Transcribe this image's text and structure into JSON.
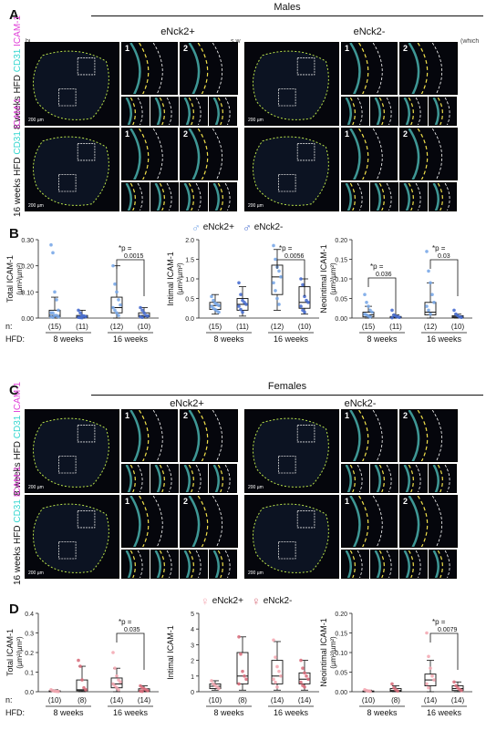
{
  "panels": {
    "A": {
      "label": "A",
      "sex": "Males",
      "left": "eNck2+",
      "right": "eNck2-",
      "row1": "8 weeks HFD",
      "row2": "16 weeks HFD",
      "marker1": "CD31",
      "marker2": "ICAM-1",
      "scale": "200 µm",
      "z1": "1",
      "z2": "2"
    },
    "C": {
      "label": "C",
      "sex": "Females",
      "left": "eNck2+",
      "right": "eNck2-",
      "row1": "8 weeks HFD",
      "row2": "16 weeks HFD",
      "marker1": "CD31",
      "marker2": "ICAM-1",
      "scale": "200 µm",
      "z1": "1",
      "z2": "2"
    },
    "A_caption_fragment": {
      "left": "bi",
      "mid": "s w",
      "right": "(which"
    }
  },
  "colors": {
    "male_pos": "#7aa8e8",
    "male_neg": "#4a6fd0",
    "fem_pos": "#f4aab4",
    "fem_neg": "#d9707e",
    "cd31": "#33d6cf",
    "icam": "#e040d8",
    "dash_yellow": "#f2e14a",
    "dash_green": "#b8e24a"
  },
  "chart_data": [
    {
      "panel": "B",
      "type": "box",
      "ylabel": "Total ICAM-1",
      "yunit": "(µm²/µm²)",
      "ylim": [
        0,
        0.3
      ],
      "yticks": [
        "0.00",
        "0.10",
        "0.20",
        "0.30"
      ],
      "groups": [
        {
          "hfd": "8 weeks",
          "series": "eNck2+",
          "n": "(15)",
          "min": 0.0,
          "q1": 0.005,
          "median": 0.01,
          "q3": 0.03,
          "max": 0.08,
          "points": [
            0.28,
            0.25,
            0.1,
            0.07,
            0.03,
            0.02,
            0.02,
            0.01,
            0.01,
            0.005,
            0.005,
            0.003
          ]
        },
        {
          "hfd": "8 weeks",
          "series": "eNck2-",
          "n": "(11)",
          "min": 0.0,
          "q1": 0.002,
          "median": 0.005,
          "q3": 0.01,
          "max": 0.03,
          "points": [
            0.03,
            0.02,
            0.01,
            0.008,
            0.005,
            0.003,
            0.002,
            0.001
          ]
        },
        {
          "hfd": "16 weeks",
          "series": "eNck2+",
          "n": "(12)",
          "min": 0.0,
          "q1": 0.02,
          "median": 0.04,
          "q3": 0.08,
          "max": 0.2,
          "points": [
            0.2,
            0.13,
            0.1,
            0.07,
            0.05,
            0.04,
            0.03,
            0.02,
            0.01
          ]
        },
        {
          "hfd": "16 weeks",
          "series": "eNck2-",
          "n": "(10)",
          "min": 0.0,
          "q1": 0.005,
          "median": 0.01,
          "q3": 0.02,
          "max": 0.04,
          "points": [
            0.04,
            0.03,
            0.02,
            0.01,
            0.008,
            0.005,
            0.003
          ]
        }
      ],
      "annotations": [
        {
          "text": "*p =",
          "value": "0.0015"
        }
      ]
    },
    {
      "panel": "B",
      "type": "box",
      "ylabel": "Intimal ICAM-1",
      "yunit": "(µm²/µm²)",
      "ylim": [
        0,
        2.0
      ],
      "yticks": [
        "0.0",
        "0.5",
        "1.0",
        "1.5",
        "2.0"
      ],
      "groups": [
        {
          "hfd": "8 weeks",
          "series": "eNck2+",
          "n": "(15)",
          "min": 0.1,
          "q1": 0.22,
          "median": 0.32,
          "q3": 0.4,
          "max": 0.6,
          "points": [
            0.55,
            0.45,
            0.38,
            0.35,
            0.32,
            0.3,
            0.25,
            0.22,
            0.18,
            0.15
          ]
        },
        {
          "hfd": "8 weeks",
          "series": "eNck2-",
          "n": "(11)",
          "min": 0.05,
          "q1": 0.2,
          "median": 0.35,
          "q3": 0.5,
          "max": 0.8,
          "points": [
            0.9,
            0.6,
            0.45,
            0.4,
            0.35,
            0.3,
            0.22,
            0.15
          ]
        },
        {
          "hfd": "16 weeks",
          "series": "eNck2+",
          "n": "(12)",
          "min": 0.2,
          "q1": 0.6,
          "median": 1.05,
          "q3": 1.35,
          "max": 1.75,
          "points": [
            1.85,
            1.5,
            1.3,
            1.2,
            1.05,
            0.9,
            0.7,
            0.5,
            0.35
          ]
        },
        {
          "hfd": "16 weeks",
          "series": "eNck2-",
          "n": "(10)",
          "min": 0.1,
          "q1": 0.25,
          "median": 0.4,
          "q3": 0.8,
          "max": 1.0,
          "points": [
            1.0,
            0.85,
            0.55,
            0.45,
            0.4,
            0.3,
            0.2,
            0.15
          ]
        }
      ],
      "annotations": [
        {
          "text": "*p =",
          "value": "0.0056"
        }
      ]
    },
    {
      "panel": "B",
      "type": "box",
      "ylabel": "Neointimal ICAM-1",
      "yunit": "(µm²/µm²)",
      "ylim": [
        0,
        0.2
      ],
      "yticks": [
        "0.00",
        "0.05",
        "0.10",
        "0.15",
        "0.20"
      ],
      "groups": [
        {
          "hfd": "8 weeks",
          "series": "eNck2+",
          "n": "(15)",
          "min": 0.0,
          "q1": 0.003,
          "median": 0.008,
          "q3": 0.015,
          "max": 0.03,
          "points": [
            0.06,
            0.04,
            0.03,
            0.02,
            0.015,
            0.01,
            0.008,
            0.005,
            0.003
          ]
        },
        {
          "hfd": "8 weeks",
          "series": "eNck2-",
          "n": "(11)",
          "min": 0.0,
          "q1": 0.001,
          "median": 0.002,
          "q3": 0.004,
          "max": 0.008,
          "points": [
            0.02,
            0.008,
            0.005,
            0.003,
            0.002,
            0.001
          ]
        },
        {
          "hfd": "16 weeks",
          "series": "eNck2+",
          "n": "(12)",
          "min": 0.0,
          "q1": 0.008,
          "median": 0.015,
          "q3": 0.04,
          "max": 0.09,
          "points": [
            0.17,
            0.12,
            0.09,
            0.06,
            0.04,
            0.03,
            0.02,
            0.01
          ]
        },
        {
          "hfd": "16 weeks",
          "series": "eNck2-",
          "n": "(10)",
          "min": 0.0,
          "q1": 0.001,
          "median": 0.003,
          "q3": 0.006,
          "max": 0.01,
          "points": [
            0.02,
            0.01,
            0.006,
            0.003,
            0.002
          ]
        }
      ],
      "annotations": [
        {
          "text": "*p =",
          "value": "0.036"
        },
        {
          "text": "*p =",
          "value": "0.03"
        }
      ]
    },
    {
      "panel": "D",
      "type": "box",
      "ylabel": "Total ICAM-1",
      "yunit": "(µm²/µm²)",
      "ylim": [
        0,
        0.4
      ],
      "yticks": [
        "0.0",
        "0.1",
        "0.2",
        "0.3",
        "0.4"
      ],
      "groups": [
        {
          "hfd": "8 weeks",
          "series": "eNck2+",
          "n": "(10)",
          "min": 0.0,
          "q1": 0.0,
          "median": 0.002,
          "q3": 0.005,
          "max": 0.01,
          "points": [
            0.01,
            0.005,
            0.003,
            0.002,
            0.001
          ]
        },
        {
          "hfd": "8 weeks",
          "series": "eNck2-",
          "n": "(8)",
          "min": 0.0,
          "q1": 0.005,
          "median": 0.01,
          "q3": 0.06,
          "max": 0.13,
          "points": [
            0.16,
            0.13,
            0.06,
            0.02,
            0.01
          ]
        },
        {
          "hfd": "16 weeks",
          "series": "eNck2+",
          "n": "(14)",
          "min": 0.0,
          "q1": 0.02,
          "median": 0.04,
          "q3": 0.07,
          "max": 0.12,
          "points": [
            0.2,
            0.12,
            0.08,
            0.06,
            0.05,
            0.04,
            0.03,
            0.02,
            0.01
          ]
        },
        {
          "hfd": "16 weeks",
          "series": "eNck2-",
          "n": "(14)",
          "min": 0.0,
          "q1": 0.002,
          "median": 0.005,
          "q3": 0.015,
          "max": 0.03,
          "points": [
            0.03,
            0.02,
            0.015,
            0.01,
            0.005,
            0.003,
            0.002
          ]
        }
      ],
      "annotations": [
        {
          "text": "*p =",
          "value": "0.035"
        }
      ]
    },
    {
      "panel": "D",
      "type": "box",
      "ylabel": "Intimal ICAM-1",
      "yunit": "",
      "ylim": [
        0,
        5
      ],
      "yticks": [
        "0",
        "1",
        "2",
        "3",
        "4",
        "5"
      ],
      "groups": [
        {
          "hfd": "8 weeks",
          "series": "eNck2+",
          "n": "(10)",
          "min": 0.1,
          "q1": 0.2,
          "median": 0.35,
          "q3": 0.5,
          "max": 0.7,
          "points": [
            0.7,
            0.5,
            0.4,
            0.3,
            0.2
          ]
        },
        {
          "hfd": "8 weeks",
          "series": "eNck2-",
          "n": "(8)",
          "min": 0.1,
          "q1": 0.5,
          "median": 1.0,
          "q3": 2.5,
          "max": 3.5,
          "points": [
            3.5,
            2.4,
            1.3,
            1.0,
            0.8,
            0.5
          ]
        },
        {
          "hfd": "16 weeks",
          "series": "eNck2+",
          "n": "(14)",
          "min": 0.1,
          "q1": 0.5,
          "median": 1.0,
          "q3": 2.0,
          "max": 3.2,
          "points": [
            3.3,
            2.2,
            1.6,
            1.3,
            1.0,
            0.8,
            0.6,
            0.3
          ]
        },
        {
          "hfd": "16 weeks",
          "series": "eNck2-",
          "n": "(14)",
          "min": 0.1,
          "q1": 0.5,
          "median": 0.8,
          "q3": 1.2,
          "max": 2.0,
          "points": [
            2.0,
            1.5,
            1.2,
            1.0,
            0.8,
            0.6,
            0.4,
            0.3
          ]
        }
      ],
      "annotations": []
    },
    {
      "panel": "D",
      "type": "box",
      "ylabel": "Neointimal ICAM-1",
      "yunit": "(µm²/µm²)",
      "ylim": [
        0,
        0.2
      ],
      "yticks": [
        "0.00",
        "0.05",
        "0.10",
        "0.15",
        "0.20"
      ],
      "groups": [
        {
          "hfd": "8 weeks",
          "series": "eNck2+",
          "n": "(10)",
          "min": 0.0,
          "q1": 0.0,
          "median": 0.001,
          "q3": 0.002,
          "max": 0.004,
          "points": [
            0.005,
            0.003,
            0.002,
            0.001
          ]
        },
        {
          "hfd": "8 weeks",
          "series": "eNck2-",
          "n": "(8)",
          "min": 0.0,
          "q1": 0.001,
          "median": 0.003,
          "q3": 0.008,
          "max": 0.015,
          "points": [
            0.02,
            0.01,
            0.005,
            0.002
          ]
        },
        {
          "hfd": "16 weeks",
          "series": "eNck2+",
          "n": "(14)",
          "min": 0.0,
          "q1": 0.015,
          "median": 0.03,
          "q3": 0.045,
          "max": 0.08,
          "points": [
            0.15,
            0.09,
            0.06,
            0.04,
            0.03,
            0.02,
            0.01
          ]
        },
        {
          "hfd": "16 weeks",
          "series": "eNck2-",
          "n": "(14)",
          "min": 0.0,
          "q1": 0.003,
          "median": 0.008,
          "q3": 0.015,
          "max": 0.025,
          "points": [
            0.025,
            0.015,
            0.01,
            0.006,
            0.003
          ]
        }
      ],
      "annotations": [
        {
          "text": "*p =",
          "value": "0.0079"
        }
      ]
    }
  ],
  "legends": {
    "B": {
      "a": "eNck2+",
      "b": "eNck2-"
    },
    "D": {
      "a": "eNck2+",
      "b": "eNck2-"
    }
  },
  "axis_labels": {
    "n": "n:",
    "hfd": "HFD:",
    "w8": "8 weeks",
    "w16": "16 weeks"
  }
}
